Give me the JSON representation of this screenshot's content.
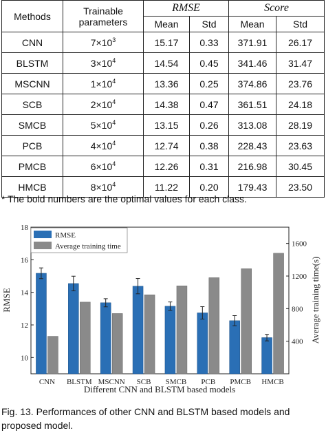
{
  "table": {
    "headers": {
      "methods": "Methods",
      "trainable_line1": "Trainable",
      "trainable_line2": "parameters",
      "rmse": "RMSE",
      "score": "Score",
      "mean": "Mean",
      "std": "Std"
    },
    "rows": [
      {
        "method": "CNN",
        "params_base": "7×10",
        "params_exp": "3",
        "rmse_mean": "15.17",
        "rmse_std": "0.33",
        "score_mean": "371.91",
        "score_std": "26.17"
      },
      {
        "method": "BLSTM",
        "params_base": "3×10",
        "params_exp": "4",
        "rmse_mean": "14.54",
        "rmse_std": "0.45",
        "score_mean": "341.46",
        "score_std": "31.47"
      },
      {
        "method": "MSCNN",
        "params_base": "1×10",
        "params_exp": "4",
        "rmse_mean": "13.36",
        "rmse_std": "0.25",
        "score_mean": "374.86",
        "score_std": "23.76"
      },
      {
        "method": "SCB",
        "params_base": "2×10",
        "params_exp": "4",
        "rmse_mean": "14.38",
        "rmse_std": "0.47",
        "score_mean": "361.51",
        "score_std": "24.18"
      },
      {
        "method": "SMCB",
        "params_base": "5×10",
        "params_exp": "4",
        "rmse_mean": "13.15",
        "rmse_std": "0.26",
        "score_mean": "313.08",
        "score_std": "28.19"
      },
      {
        "method": "PCB",
        "params_base": "4×10",
        "params_exp": "4",
        "rmse_mean": "12.74",
        "rmse_std": "0.38",
        "score_mean": "228.43",
        "score_std": "23.63"
      },
      {
        "method": "PMCB",
        "params_base": "6×10",
        "params_exp": "4",
        "rmse_mean": "12.26",
        "rmse_std": "0.31",
        "score_mean": "216.98",
        "score_std": "30.45"
      },
      {
        "method": "HMCB",
        "params_base": "8×10",
        "params_exp": "4",
        "rmse_mean": "11.22",
        "rmse_std": "0.20",
        "score_mean": "179.43",
        "score_std": "23.50"
      }
    ]
  },
  "note": "* The bold numbers are the optimal values for each class.",
  "caption": "Fig. 13. Performances of other CNN and BLSTM based models and proposed model.",
  "chart_data": {
    "type": "bar",
    "xlabel": "Different CNN and BLSTM based models",
    "ylabel": "RMSE",
    "y2label": "Average training time(s)",
    "categories": [
      "CNN",
      "BLSTM",
      "MSCNN",
      "SCB",
      "SMCB",
      "PCB",
      "PMCB",
      "HMCB"
    ],
    "ylim": [
      9,
      18
    ],
    "y2lim": [
      0,
      1800
    ],
    "yticks": [
      "10",
      "12",
      "14",
      "16",
      "18"
    ],
    "y2ticks": [
      "400",
      "800",
      "1200",
      "1600"
    ],
    "legend_position": "top-left",
    "series": [
      {
        "name": "RMSE",
        "axis": "left",
        "color": "#2a6fb5",
        "values": [
          15.17,
          14.54,
          13.36,
          14.38,
          13.15,
          12.74,
          12.26,
          11.22
        ],
        "errors": [
          0.33,
          0.45,
          0.25,
          0.47,
          0.26,
          0.38,
          0.31,
          0.2
        ]
      },
      {
        "name": "Average training time",
        "axis": "right",
        "color": "#8a8a8a",
        "values": [
          460,
          880,
          740,
          970,
          1080,
          1180,
          1290,
          1480
        ]
      }
    ]
  }
}
